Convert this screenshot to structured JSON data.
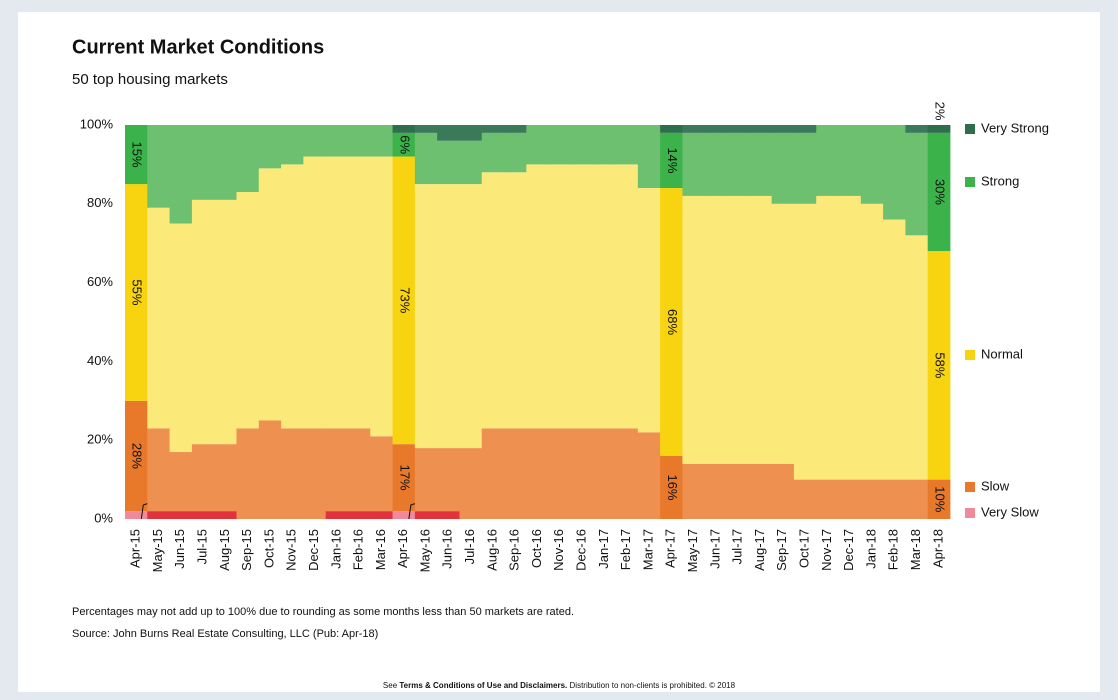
{
  "chart_data": {
    "type": "stacked_bar",
    "title": "Current Market Conditions",
    "subtitle": "50 top housing markets",
    "categories": [
      "Apr-15",
      "May-15",
      "Jun-15",
      "Jul-15",
      "Aug-15",
      "Sep-15",
      "Oct-15",
      "Nov-15",
      "Dec-15",
      "Jan-16",
      "Feb-16",
      "Mar-16",
      "Apr-16",
      "May-16",
      "Jun-16",
      "Jul-16",
      "Aug-16",
      "Sep-16",
      "Oct-16",
      "Nov-16",
      "Dec-16",
      "Jan-17",
      "Feb-17",
      "Mar-17",
      "Apr-17",
      "May-17",
      "Jun-17",
      "Jul-17",
      "Aug-17",
      "Sep-17",
      "Oct-17",
      "Nov-17",
      "Dec-17",
      "Jan-18",
      "Feb-18",
      "Mar-18",
      "Apr-18"
    ],
    "highlighted": [
      "Apr-15",
      "Apr-16",
      "Apr-17",
      "Apr-18"
    ],
    "series": [
      {
        "name": "Very Slow",
        "color": "#e2333d",
        "highlight_color": "#f0899a",
        "values": [
          2,
          2,
          2,
          2,
          2,
          0,
          0,
          0,
          0,
          2,
          2,
          2,
          2,
          2,
          2,
          0,
          0,
          0,
          0,
          0,
          0,
          0,
          0,
          0,
          0,
          0,
          0,
          0,
          0,
          0,
          0,
          0,
          0,
          0,
          0,
          0,
          0
        ],
        "value_labels": [
          null,
          "2%",
          null,
          null,
          null,
          null,
          null,
          null,
          null,
          null,
          null,
          null,
          null,
          "2%",
          null,
          null,
          null,
          null,
          null,
          null,
          null,
          null,
          null,
          null,
          null,
          null,
          null,
          null,
          null,
          null,
          null,
          null,
          null,
          null,
          null,
          null,
          null
        ]
      },
      {
        "name": "Slow",
        "color": "#ee9150",
        "highlight_color": "#e8782a",
        "values": [
          28,
          21,
          15,
          17,
          17,
          23,
          25,
          23,
          23,
          21,
          21,
          19,
          17,
          16,
          16,
          18,
          23,
          23,
          23,
          23,
          23,
          23,
          23,
          22,
          16,
          14,
          14,
          14,
          14,
          14,
          10,
          10,
          10,
          10,
          10,
          10,
          10
        ],
        "value_labels": [
          "28%",
          null,
          null,
          null,
          null,
          null,
          null,
          null,
          null,
          null,
          null,
          null,
          "17%",
          null,
          null,
          null,
          null,
          null,
          null,
          null,
          null,
          null,
          null,
          null,
          "16%",
          null,
          null,
          null,
          null,
          null,
          null,
          null,
          null,
          null,
          null,
          null,
          "10%"
        ]
      },
      {
        "name": "Normal",
        "color": "#fbe97a",
        "highlight_color": "#f8d410",
        "values": [
          55,
          56,
          58,
          62,
          62,
          60,
          64,
          67,
          69,
          69,
          69,
          71,
          73,
          67,
          67,
          67,
          65,
          65,
          67,
          67,
          67,
          67,
          67,
          62,
          68,
          68,
          68,
          68,
          68,
          66,
          70,
          72,
          72,
          70,
          66,
          62,
          58
        ],
        "value_labels": [
          "55%",
          null,
          null,
          null,
          null,
          null,
          null,
          null,
          null,
          null,
          null,
          null,
          "73%",
          null,
          null,
          null,
          null,
          null,
          null,
          null,
          null,
          null,
          null,
          null,
          "68%",
          null,
          null,
          null,
          null,
          null,
          null,
          null,
          null,
          null,
          null,
          null,
          "58%"
        ]
      },
      {
        "name": "Strong",
        "color": "#6cc070",
        "highlight_color": "#3bb34a",
        "values": [
          15,
          21,
          25,
          19,
          19,
          17,
          11,
          10,
          8,
          8,
          8,
          8,
          6,
          13,
          11,
          11,
          10,
          10,
          10,
          10,
          10,
          10,
          10,
          16,
          14,
          16,
          16,
          16,
          16,
          18,
          18,
          18,
          18,
          20,
          24,
          26,
          30
        ],
        "value_labels": [
          "15%",
          null,
          null,
          null,
          null,
          null,
          null,
          null,
          null,
          null,
          null,
          null,
          "6%",
          null,
          null,
          null,
          null,
          null,
          null,
          null,
          null,
          null,
          null,
          null,
          "14%",
          null,
          null,
          null,
          null,
          null,
          null,
          null,
          null,
          null,
          null,
          null,
          "30%"
        ]
      },
      {
        "name": "Very Strong",
        "color": "#3a7a58",
        "highlight_color": "#2f6e4c",
        "values": [
          0,
          0,
          0,
          0,
          0,
          0,
          0,
          0,
          0,
          0,
          0,
          0,
          2,
          2,
          4,
          4,
          2,
          2,
          0,
          0,
          0,
          0,
          0,
          0,
          2,
          2,
          2,
          2,
          2,
          2,
          2,
          0,
          0,
          0,
          0,
          2,
          2
        ],
        "value_labels": [
          null,
          null,
          null,
          null,
          null,
          null,
          null,
          null,
          null,
          null,
          null,
          null,
          null,
          null,
          null,
          null,
          null,
          null,
          null,
          null,
          null,
          null,
          null,
          null,
          null,
          null,
          null,
          null,
          null,
          null,
          null,
          null,
          null,
          null,
          null,
          null,
          "2%"
        ]
      }
    ],
    "ylim": [
      0,
      100
    ],
    "yticks": [
      {
        "value": 0,
        "label": "0%"
      },
      {
        "value": 20,
        "label": "20%"
      },
      {
        "value": 40,
        "label": "40%"
      },
      {
        "value": 60,
        "label": "60%"
      },
      {
        "value": 80,
        "label": "80%"
      },
      {
        "value": 100,
        "label": "100%"
      }
    ],
    "legend": "right",
    "note": "Percentages may not add up to 100% due to rounding as some months less than 50 markets are rated.",
    "source": "Source: John Burns Real Estate Consulting, LLC (Pub: Apr-18)"
  },
  "footer": {
    "prefix": "See",
    "link": "Terms & Conditions of Use and Disclaimers.",
    "rest": "Distribution to non-clients is prohibited. © 2018"
  }
}
